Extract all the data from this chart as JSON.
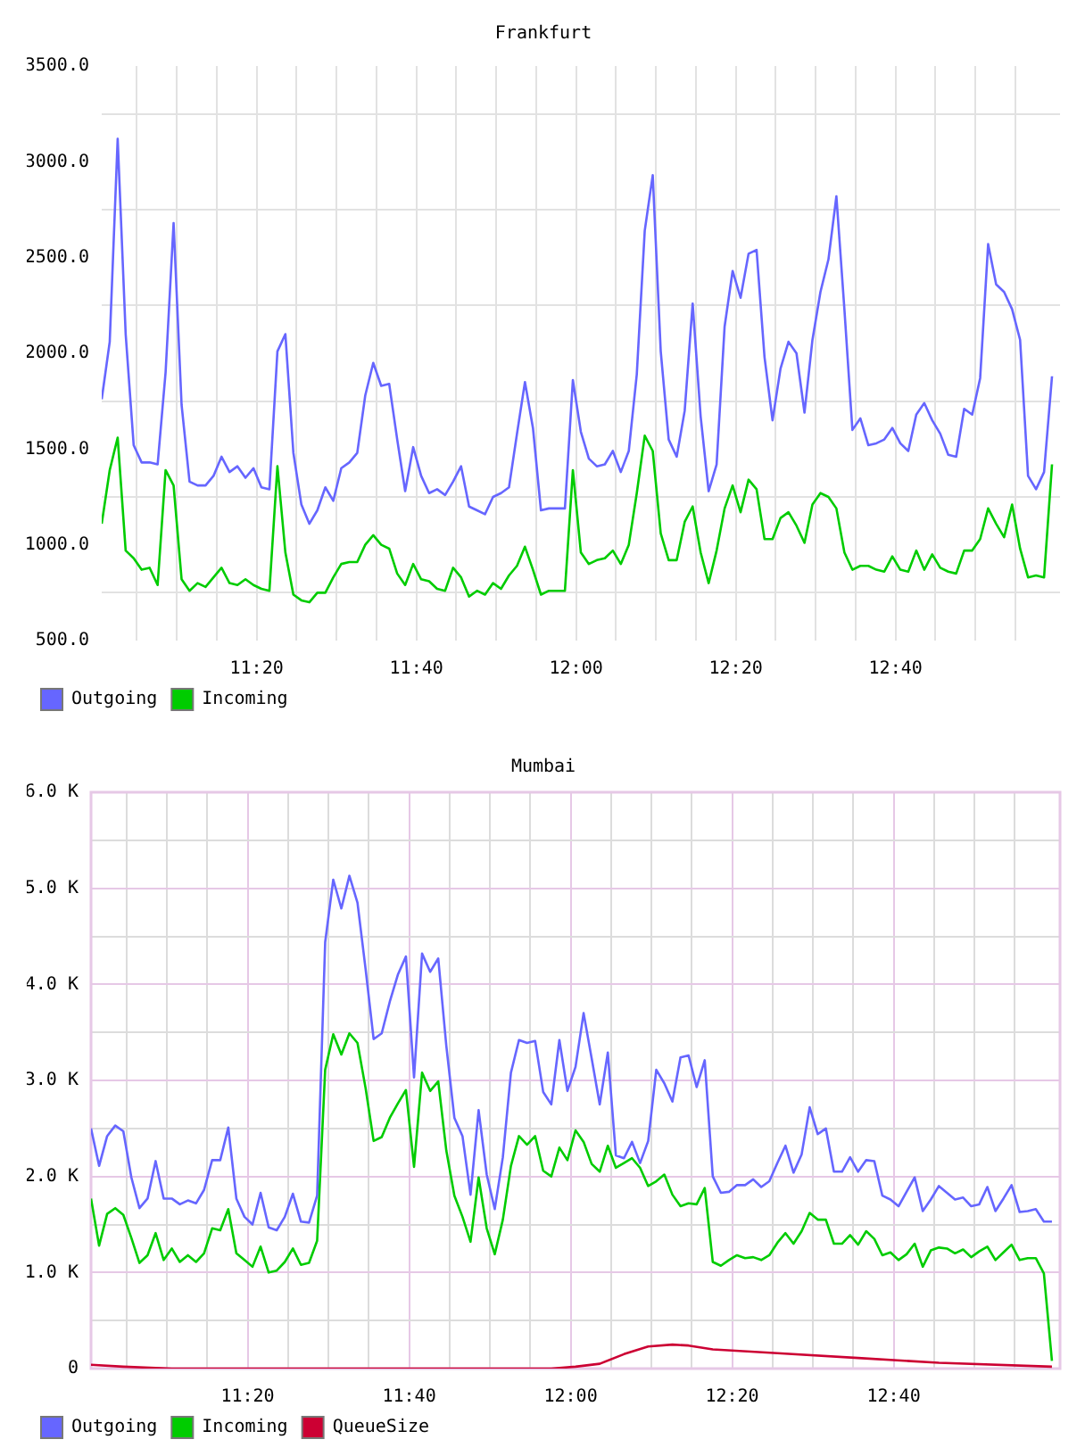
{
  "chart_data": [
    {
      "type": "line",
      "title": "Frankfurt",
      "x": [
        11.01,
        11.0267,
        11.0433,
        11.06,
        11.0767,
        11.0933,
        11.11,
        11.1267,
        11.1433,
        11.16,
        11.1767,
        11.1933,
        11.21,
        11.2267,
        11.2433,
        11.26,
        11.2767,
        11.2933,
        11.31,
        11.3267,
        11.3433,
        11.36,
        11.3767,
        11.3933,
        11.41,
        11.4267,
        11.4433,
        11.46,
        11.4767,
        11.4933,
        11.51,
        11.5267,
        11.5433,
        11.56,
        11.5767,
        11.5933,
        11.61,
        11.6267,
        11.6433,
        11.66,
        11.6767,
        11.6933,
        11.71,
        11.7267,
        11.7433,
        11.76,
        11.7767,
        11.7933,
        11.81,
        11.8267,
        11.8433,
        11.86,
        11.8767,
        11.8933,
        11.91,
        11.9267,
        11.9433,
        11.96,
        11.9767,
        11.9933,
        12.01,
        12.0267,
        12.0433,
        12.06,
        12.0767,
        12.0933,
        12.11,
        12.1267,
        12.1433,
        12.16,
        12.1767,
        12.1933,
        12.21,
        12.2267,
        12.2433,
        12.26,
        12.2767,
        12.2933,
        12.31,
        12.3267,
        12.3433,
        12.36,
        12.3767,
        12.3933,
        12.41,
        12.4267,
        12.4433,
        12.46,
        12.4767,
        12.4933,
        12.51,
        12.5267,
        12.5433,
        12.56,
        12.5767,
        12.5933,
        12.61,
        12.6267,
        12.6433,
        12.66,
        12.6767,
        12.6933,
        12.71,
        12.7267,
        12.7433,
        12.76,
        12.7767,
        12.7933,
        12.81,
        12.8267,
        12.8433,
        12.86,
        12.8767,
        12.8933,
        12.91,
        12.9267,
        12.9433,
        12.96,
        12.9767,
        12.9933
      ],
      "xlim": [
        11.01,
        13.01
      ],
      "xticks": [
        {
          "value": 11.0833,
          "label": null
        },
        {
          "value": 11.1667,
          "label": null
        },
        {
          "value": 11.25,
          "label": null
        },
        {
          "value": 11.3333,
          "label": "11:20"
        },
        {
          "value": 11.4167,
          "label": null
        },
        {
          "value": 11.5,
          "label": null
        },
        {
          "value": 11.5833,
          "label": null
        },
        {
          "value": 11.6667,
          "label": "11:40"
        },
        {
          "value": 11.75,
          "label": null
        },
        {
          "value": 11.8333,
          "label": null
        },
        {
          "value": 11.9167,
          "label": null
        },
        {
          "value": 12,
          "label": "12:00"
        },
        {
          "value": 12.0833,
          "label": null
        },
        {
          "value": 12.1667,
          "label": null
        },
        {
          "value": 12.25,
          "label": null
        },
        {
          "value": 12.3333,
          "label": "12:20"
        },
        {
          "value": 12.4167,
          "label": null
        },
        {
          "value": 12.5,
          "label": null
        },
        {
          "value": 12.5833,
          "label": null
        },
        {
          "value": 12.6667,
          "label": "12:40"
        },
        {
          "value": 12.75,
          "label": null
        },
        {
          "value": 12.8333,
          "label": null
        },
        {
          "value": 12.9167,
          "label": null
        }
      ],
      "ylim": [
        500,
        3500
      ],
      "yticks": [
        {
          "value": 500,
          "label": "500.0"
        },
        {
          "value": 750,
          "label": null
        },
        {
          "value": 1000,
          "label": "1000.0"
        },
        {
          "value": 1250,
          "label": null
        },
        {
          "value": 1500,
          "label": "1500.0"
        },
        {
          "value": 1750,
          "label": null
        },
        {
          "value": 2000,
          "label": "2000.0"
        },
        {
          "value": 2250,
          "label": null
        },
        {
          "value": 2500,
          "label": "2500.0"
        },
        {
          "value": 2750,
          "label": null
        },
        {
          "value": 3000,
          "label": "3000.0"
        },
        {
          "value": 3250,
          "label": null
        },
        {
          "value": 3500,
          "label": "3500.0"
        }
      ],
      "grid": true,
      "legend": "bottom left",
      "series": [
        {
          "name": "Outgoing",
          "color": "#6666ff",
          "values": [
            1760,
            2060,
            3120,
            2100,
            1520,
            1430,
            1430,
            1420,
            1900,
            2680,
            1730,
            1330,
            1310,
            1310,
            1360,
            1460,
            1380,
            1410,
            1350,
            1400,
            1300,
            1290,
            2010,
            2100,
            1480,
            1210,
            1110,
            1180,
            1300,
            1230,
            1400,
            1430,
            1480,
            1780,
            1950,
            1830,
            1840,
            1550,
            1280,
            1510,
            1360,
            1270,
            1290,
            1260,
            1330,
            1410,
            1200,
            1180,
            1160,
            1250,
            1270,
            1300,
            1580,
            1850,
            1610,
            1180,
            1190,
            1190,
            1190,
            1860,
            1590,
            1450,
            1410,
            1420,
            1490,
            1380,
            1490,
            1890,
            2640,
            2930,
            2010,
            1550,
            1460,
            1700,
            2260,
            1670,
            1280,
            1420,
            2140,
            2430,
            2290,
            2520,
            2540,
            1980,
            1650,
            1920,
            2060,
            2000,
            1690,
            2070,
            2320,
            2490,
            2820,
            2230,
            1600,
            1660,
            1520,
            1530,
            1550,
            1610,
            1530,
            1490,
            1680,
            1740,
            1650,
            1580,
            1470,
            1460,
            1710,
            1680,
            1870,
            2570,
            2360,
            2320,
            2230,
            2070,
            1360,
            1290,
            1380,
            1880
          ]
        },
        {
          "name": "Incoming",
          "color": "#00cc00",
          "values": [
            1110,
            1390,
            1560,
            970,
            930,
            870,
            880,
            790,
            1390,
            1310,
            820,
            760,
            800,
            780,
            830,
            880,
            800,
            790,
            820,
            790,
            770,
            760,
            1410,
            960,
            740,
            710,
            700,
            750,
            750,
            830,
            900,
            910,
            910,
            1000,
            1050,
            1000,
            980,
            850,
            790,
            900,
            820,
            810,
            770,
            760,
            880,
            830,
            730,
            760,
            740,
            800,
            770,
            840,
            890,
            990,
            870,
            740,
            760,
            760,
            760,
            1390,
            960,
            900,
            920,
            930,
            970,
            900,
            1000,
            1270,
            1570,
            1490,
            1060,
            920,
            920,
            1120,
            1200,
            960,
            800,
            970,
            1190,
            1310,
            1170,
            1340,
            1290,
            1030,
            1030,
            1140,
            1170,
            1100,
            1010,
            1210,
            1270,
            1250,
            1190,
            960,
            870,
            890,
            890,
            870,
            860,
            940,
            870,
            860,
            970,
            870,
            950,
            880,
            860,
            850,
            970,
            970,
            1030,
            1190,
            1110,
            1040,
            1210,
            980,
            830,
            840,
            830,
            1420
          ]
        }
      ]
    },
    {
      "type": "line",
      "title": "Mumbai",
      "x": [
        11.01,
        11.0267,
        11.0433,
        11.06,
        11.0767,
        11.0933,
        11.11,
        11.1267,
        11.1433,
        11.16,
        11.1767,
        11.1933,
        11.21,
        11.2267,
        11.2433,
        11.26,
        11.2767,
        11.2933,
        11.31,
        11.3267,
        11.3433,
        11.36,
        11.3767,
        11.3933,
        11.41,
        11.4267,
        11.4433,
        11.46,
        11.4767,
        11.4933,
        11.51,
        11.5267,
        11.5433,
        11.56,
        11.5767,
        11.5933,
        11.61,
        11.6267,
        11.6433,
        11.66,
        11.6767,
        11.6933,
        11.71,
        11.7267,
        11.7433,
        11.76,
        11.7767,
        11.7933,
        11.81,
        11.8267,
        11.8433,
        11.86,
        11.8767,
        11.8933,
        11.91,
        11.9267,
        11.9433,
        11.96,
        11.9767,
        11.9933,
        12.01,
        12.0267,
        12.0433,
        12.06,
        12.0767,
        12.0933,
        12.11,
        12.1267,
        12.1433,
        12.16,
        12.1767,
        12.1933,
        12.21,
        12.2267,
        12.2433,
        12.26,
        12.2767,
        12.2933,
        12.31,
        12.3267,
        12.3433,
        12.36,
        12.3767,
        12.3933,
        12.41,
        12.4267,
        12.4433,
        12.46,
        12.4767,
        12.4933,
        12.51,
        12.5267,
        12.5433,
        12.56,
        12.5767,
        12.5933,
        12.61,
        12.6267,
        12.6433,
        12.66,
        12.6767,
        12.6933,
        12.71,
        12.7267,
        12.7433,
        12.76,
        12.7767,
        12.7933,
        12.81,
        12.8267,
        12.8433,
        12.86,
        12.8767,
        12.8933,
        12.91,
        12.9267,
        12.9433,
        12.96,
        12.9767,
        12.9933
      ],
      "xlim": [
        11.01,
        13.01
      ],
      "xticks": [
        {
          "value": 11.0833,
          "label": null
        },
        {
          "value": 11.1667,
          "label": null
        },
        {
          "value": 11.25,
          "label": null
        },
        {
          "value": 11.3333,
          "label": "11:20"
        },
        {
          "value": 11.4167,
          "label": null
        },
        {
          "value": 11.5,
          "label": null
        },
        {
          "value": 11.5833,
          "label": null
        },
        {
          "value": 11.6667,
          "label": "11:40"
        },
        {
          "value": 11.75,
          "label": null
        },
        {
          "value": 11.8333,
          "label": null
        },
        {
          "value": 11.9167,
          "label": null
        },
        {
          "value": 12,
          "label": "12:00"
        },
        {
          "value": 12.0833,
          "label": null
        },
        {
          "value": 12.1667,
          "label": null
        },
        {
          "value": 12.25,
          "label": null
        },
        {
          "value": 12.3333,
          "label": "12:20"
        },
        {
          "value": 12.4167,
          "label": null
        },
        {
          "value": 12.5,
          "label": null
        },
        {
          "value": 12.5833,
          "label": null
        },
        {
          "value": 12.6667,
          "label": "12:40"
        },
        {
          "value": 12.75,
          "label": null
        },
        {
          "value": 12.8333,
          "label": null
        },
        {
          "value": 12.9167,
          "label": null
        }
      ],
      "ylim": [
        0,
        6000
      ],
      "yticks": [
        0,
        {
          "value": 500,
          "label": null
        },
        {
          "value": 1000,
          "label": "1.0 K"
        },
        {
          "value": 1500,
          "label": null
        },
        {
          "value": 2000,
          "label": "2.0 K"
        },
        {
          "value": 2500,
          "label": null
        },
        {
          "value": 3000,
          "label": "3.0 K"
        },
        {
          "value": 3500,
          "label": null
        },
        {
          "value": 4000,
          "label": "4.0 K"
        },
        {
          "value": 4500,
          "label": null
        },
        {
          "value": 5000,
          "label": "5.0 K"
        },
        {
          "value": 5500,
          "label": null
        },
        {
          "value": 6000,
          "label": "6.0 K"
        }
      ],
      "grid": true,
      "legend": "bottom left",
      "series": [
        {
          "name": "Outgoing",
          "color": "#6666ff",
          "values": [
            2500,
            2110,
            2420,
            2530,
            2470,
            1990,
            1670,
            1770,
            2160,
            1770,
            1770,
            1710,
            1750,
            1720,
            1860,
            2170,
            2170,
            2510,
            1770,
            1580,
            1500,
            1830,
            1470,
            1440,
            1580,
            1820,
            1530,
            1520,
            1800,
            4440,
            5090,
            4790,
            5130,
            4850,
            4160,
            3430,
            3490,
            3820,
            4100,
            4290,
            3030,
            4320,
            4130,
            4270,
            3360,
            2610,
            2420,
            1810,
            2690,
            2020,
            1660,
            2200,
            3080,
            3420,
            3390,
            3410,
            2880,
            2750,
            3420,
            2890,
            3140,
            3700,
            3230,
            2750,
            3290,
            2220,
            2190,
            2360,
            2140,
            2370,
            3110,
            2970,
            2780,
            3240,
            3260,
            2930,
            3210,
            2000,
            1830,
            1840,
            1910,
            1910,
            1970,
            1890,
            1950,
            2140,
            2320,
            2040,
            2230,
            2720,
            2440,
            2500,
            2050,
            2050,
            2200,
            2050,
            2170,
            2160,
            1800,
            1760,
            1690,
            1840,
            1990,
            1640,
            1760,
            1900,
            1830,
            1760,
            1780,
            1690,
            1710,
            1890,
            1640,
            1770,
            1910,
            1630,
            1640,
            1660,
            1530,
            1530
          ]
        },
        {
          "name": "Incoming",
          "color": "#00cc00",
          "values": [
            1770,
            1280,
            1610,
            1670,
            1600,
            1360,
            1100,
            1180,
            1410,
            1130,
            1250,
            1110,
            1180,
            1110,
            1200,
            1460,
            1440,
            1660,
            1200,
            1130,
            1060,
            1270,
            1000,
            1020,
            1110,
            1250,
            1080,
            1100,
            1330,
            3110,
            3480,
            3270,
            3490,
            3390,
            2920,
            2370,
            2410,
            2610,
            2760,
            2900,
            2100,
            3080,
            2890,
            2990,
            2270,
            1800,
            1580,
            1320,
            1990,
            1460,
            1190,
            1550,
            2110,
            2420,
            2330,
            2420,
            2060,
            2000,
            2300,
            2170,
            2480,
            2360,
            2130,
            2050,
            2320,
            2090,
            2140,
            2190,
            2090,
            1900,
            1950,
            2020,
            1810,
            1690,
            1720,
            1710,
            1880,
            1110,
            1070,
            1130,
            1180,
            1150,
            1160,
            1130,
            1180,
            1310,
            1410,
            1300,
            1430,
            1620,
            1550,
            1550,
            1300,
            1300,
            1390,
            1290,
            1430,
            1350,
            1180,
            1210,
            1130,
            1190,
            1300,
            1060,
            1230,
            1260,
            1250,
            1200,
            1240,
            1160,
            1220,
            1270,
            1130,
            1210,
            1290,
            1130,
            1150,
            1150,
            990,
            80
          ]
        },
        {
          "name": "QueueSize",
          "color": "#cc0033",
          "x": [
            11.01,
            11.0767,
            11.1767,
            11.96,
            12.01,
            12.06,
            12.11,
            12.16,
            12.21,
            12.2433,
            12.2933,
            12.4267,
            12.5933,
            12.76,
            12.9933
          ],
          "values": [
            40,
            20,
            0,
            0,
            20,
            50,
            150,
            230,
            250,
            240,
            200,
            160,
            110,
            60,
            20
          ]
        }
      ]
    }
  ]
}
